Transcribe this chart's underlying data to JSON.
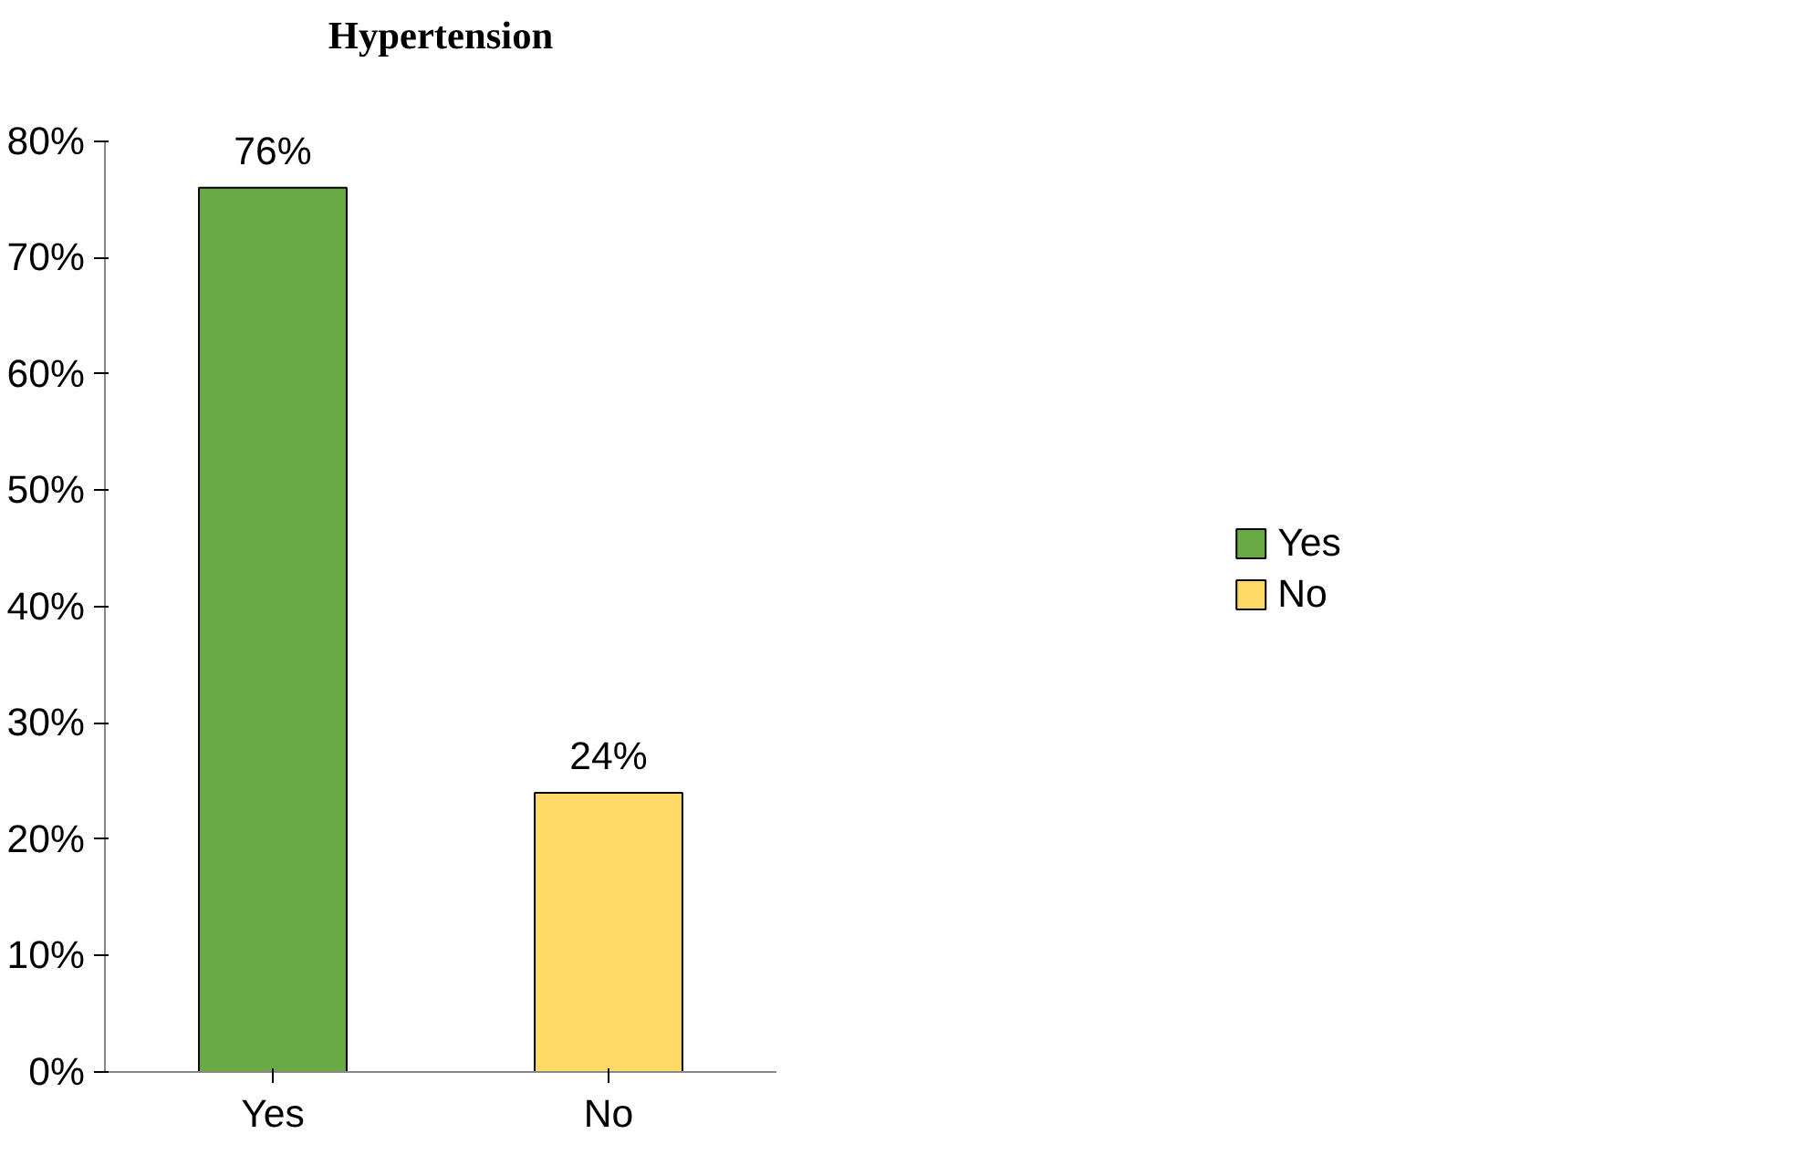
{
  "chart_data": {
    "type": "bar",
    "title": "Hypertension",
    "categories": [
      "Yes",
      "No"
    ],
    "stacked": true,
    "series": [
      {
        "name": "Yes",
        "color": "#6aaa44",
        "values": [
          76,
          null
        ],
        "value_labels": [
          "76%",
          null
        ]
      },
      {
        "name": "No",
        "color": "#ffd966",
        "values": [
          null,
          24
        ],
        "value_labels": [
          null,
          "24%"
        ]
      }
    ],
    "ylim": [
      0,
      80
    ],
    "yticks": [
      {
        "value": 0,
        "label": "0%"
      },
      {
        "value": 10,
        "label": "10%"
      },
      {
        "value": 20,
        "label": "20%"
      },
      {
        "value": 30,
        "label": "30%"
      },
      {
        "value": 40,
        "label": "40%"
      },
      {
        "value": 50,
        "label": "50%"
      },
      {
        "value": 60,
        "label": "60%"
      },
      {
        "value": 70,
        "label": "70%"
      },
      {
        "value": 80,
        "label": "80%"
      }
    ],
    "grid": false,
    "legend": "right"
  }
}
